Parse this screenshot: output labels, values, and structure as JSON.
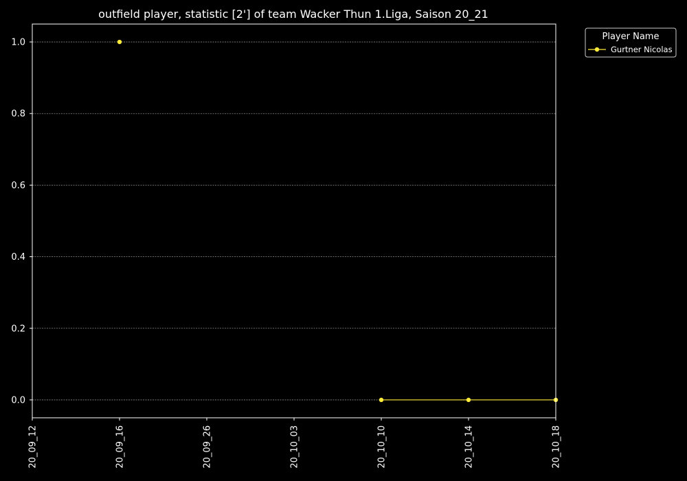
{
  "chart_data": {
    "type": "line",
    "title": "outfield player, statistic [2'] of team Wacker Thun 1.Liga, Saison 20_21",
    "xlabel": "",
    "ylabel": "",
    "x_categories": [
      "20_09_12",
      "20_09_16",
      "20_09_26",
      "20_10_03",
      "20_10_10",
      "20_10_14",
      "20_10_18"
    ],
    "y_ticks": [
      "0.0",
      "0.2",
      "0.4",
      "0.6",
      "0.8",
      "1.0"
    ],
    "ylim": [
      -0.05,
      1.05
    ],
    "grid": "horizontal dashed",
    "legend": {
      "title": "Player Name",
      "placement": "outside top-right"
    },
    "series": [
      {
        "name": "Gurtner Nicolas",
        "color": "#ffeb3b",
        "marker": "circle",
        "points": [
          {
            "x": "20_09_16",
            "y": 1.0
          },
          {
            "x": "20_10_10",
            "y": 0.0
          },
          {
            "x": "20_10_14",
            "y": 0.0
          },
          {
            "x": "20_10_18",
            "y": 0.0
          }
        ],
        "connected_segments": [
          [
            "20_10_10",
            "20_10_14",
            "20_10_18"
          ]
        ]
      }
    ],
    "colors": {
      "background": "#000000",
      "axes": "#ffffff",
      "grid": "#8a8a8a",
      "text": "#ffffff"
    }
  }
}
